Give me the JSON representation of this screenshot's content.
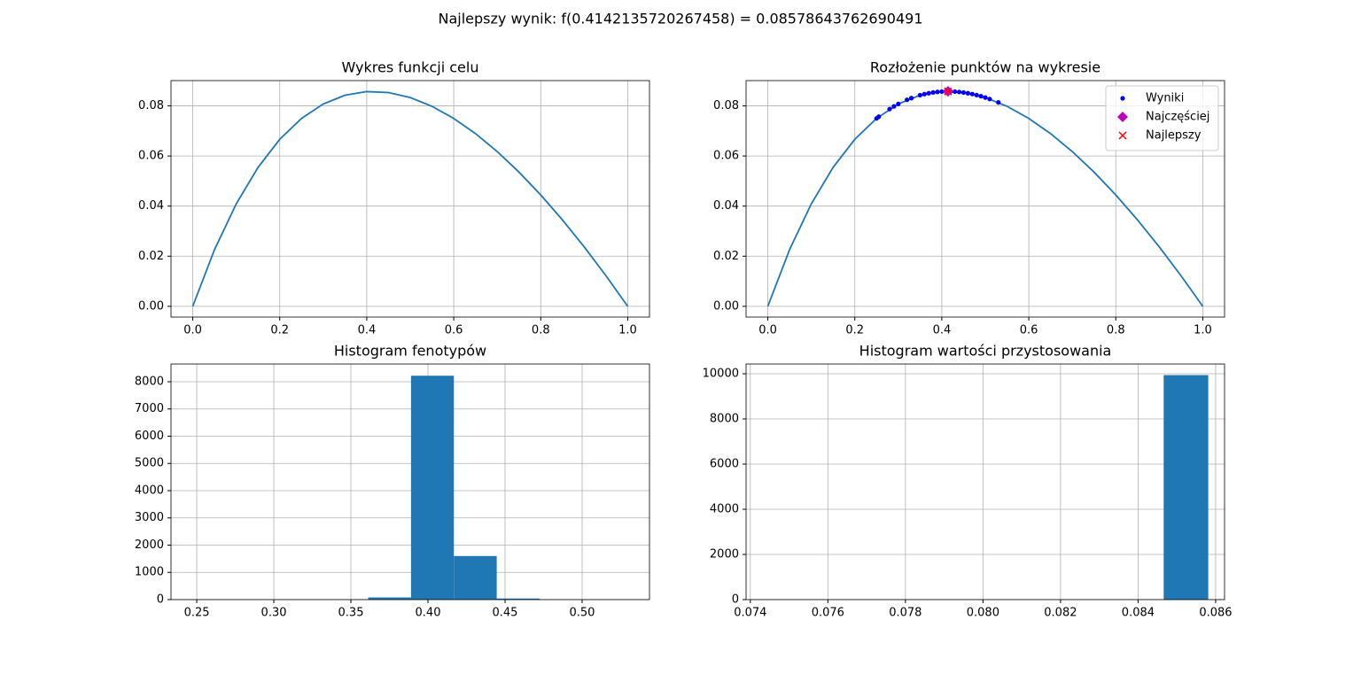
{
  "title": "Najlepszy wynik: f(0.4142135720267458) = 0.08578643762690491",
  "chart_data": [
    {
      "type": "line",
      "title": "Wykres funkcji celu",
      "grid": true,
      "series": [
        {
          "color": "#1f77b4",
          "marker": "none",
          "x": [
            0,
            0.05,
            0.1,
            0.15,
            0.2,
            0.25,
            0.3,
            0.35,
            0.4,
            0.45,
            0.5,
            0.55,
            0.6,
            0.65,
            0.7,
            0.75,
            0.8,
            0.85,
            0.9,
            0.95,
            1
          ],
          "values": [
            0,
            0.02262,
            0.04091,
            0.05543,
            0.06667,
            0.075,
            0.08077,
            0.08426,
            0.08571,
            0.08534,
            0.08333,
            0.07984,
            0.075,
            0.06894,
            0.06176,
            0.05357,
            0.04444,
            0.03446,
            0.02368,
            0.01218,
            0
          ]
        }
      ],
      "xlim": [
        -0.05,
        1.05
      ],
      "xticks": [
        {
          "value": 0,
          "label": "0.0"
        },
        0.2,
        0.4,
        0.6,
        0.8,
        {
          "value": 1,
          "label": "1.0"
        }
      ],
      "ylim": [
        -0.0043,
        0.0901
      ],
      "yticks": [
        {
          "value": 0,
          "label": "0.00"
        },
        0.02,
        0.04,
        0.06,
        0.08
      ]
    },
    {
      "type": "line",
      "title": "Rozłożenie punktów na wykresie",
      "grid": true,
      "legend": "upper right",
      "series": [
        {
          "color": "#1f77b4",
          "marker": "none",
          "x": [
            0,
            0.05,
            0.1,
            0.15,
            0.2,
            0.25,
            0.3,
            0.35,
            0.4,
            0.45,
            0.5,
            0.55,
            0.6,
            0.65,
            0.7,
            0.75,
            0.8,
            0.85,
            0.9,
            0.95,
            1
          ],
          "values": [
            0,
            0.02262,
            0.04091,
            0.05543,
            0.06667,
            0.075,
            0.08077,
            0.08426,
            0.08571,
            0.08534,
            0.08333,
            0.07984,
            0.075,
            0.06894,
            0.06176,
            0.05357,
            0.04444,
            0.03446,
            0.02368,
            0.01218,
            0
          ]
        },
        {
          "name": "Wyniki",
          "color": "#0000ff",
          "marker": "o",
          "x": [
            0.25,
            0.255,
            0.28,
            0.29,
            0.3,
            0.32,
            0.33,
            0.35,
            0.36,
            0.37,
            0.38,
            0.39,
            0.4,
            0.41,
            0.42,
            0.43,
            0.44,
            0.45,
            0.46,
            0.47,
            0.48,
            0.49,
            0.5,
            0.51,
            0.53
          ],
          "values": [
            0.075,
            0.07569,
            0.07875,
            0.07981,
            0.08077,
            0.08242,
            0.08312,
            0.08426,
            0.08471,
            0.08507,
            0.08536,
            0.08558,
            0.08571,
            0.08578,
            0.08577,
            0.0857,
            0.08556,
            0.08534,
            0.08507,
            0.08473,
            0.08432,
            0.08386,
            0.08333,
            0.08275,
            0.0814
          ]
        },
        {
          "name": "Najczęściej",
          "color": "#bf00bf",
          "marker": "D",
          "x": [
            0.4142
          ],
          "values": [
            0.0858
          ]
        },
        {
          "name": "Najlepszy",
          "color": "#ff0000",
          "marker": "x",
          "x": [
            0.4142
          ],
          "values": [
            0.0858
          ]
        }
      ],
      "xlim": [
        -0.05,
        1.05
      ],
      "xticks": [
        {
          "value": 0,
          "label": "0.0"
        },
        0.2,
        0.4,
        0.6,
        0.8,
        {
          "value": 1,
          "label": "1.0"
        }
      ],
      "ylim": [
        -0.0043,
        0.0901
      ],
      "yticks": [
        {
          "value": 0,
          "label": "0.00"
        },
        0.02,
        0.04,
        0.06,
        0.08
      ]
    },
    {
      "type": "histogram",
      "title": "Histogram fenotypów",
      "grid": true,
      "color": "#1f77b4",
      "bins": [
        0.25,
        0.2778,
        0.3056,
        0.3334,
        0.3612,
        0.389,
        0.4168,
        0.4446,
        0.4724,
        0.5002,
        0.528
      ],
      "values": [
        0,
        0,
        0,
        0,
        80,
        8220,
        1600,
        40,
        0,
        0
      ],
      "xlim": [
        0.2333,
        0.5437
      ],
      "xticks": [
        0.25,
        {
          "value": 0.3,
          "label": "0.30"
        },
        0.35,
        {
          "value": 0.4,
          "label": "0.40"
        },
        0.45,
        {
          "value": 0.5,
          "label": "0.50"
        }
      ],
      "ylim": [
        0,
        8650
      ],
      "yticks": [
        0,
        1000,
        2000,
        3000,
        4000,
        5000,
        6000,
        7000,
        8000
      ]
    },
    {
      "type": "histogram",
      "title": "Histogram wartości przystosowania",
      "grid": true,
      "color": "#1f77b4",
      "bins": [
        0.07431,
        0.07546,
        0.07661,
        0.07776,
        0.07891,
        0.08006,
        0.08121,
        0.08236,
        0.08351,
        0.08466,
        0.08581
      ],
      "values": [
        0,
        0,
        0,
        0,
        0,
        0,
        0,
        0,
        0,
        9940
      ],
      "xlim": [
        0.07389,
        0.08623
      ],
      "xticks": [
        0.074,
        0.076,
        0.078,
        {
          "value": 0.08,
          "label": "0.080"
        },
        0.082,
        0.084,
        0.086
      ],
      "ylim": [
        0,
        10431
      ],
      "yticks": [
        0,
        2000,
        4000,
        6000,
        8000,
        10000
      ]
    }
  ]
}
